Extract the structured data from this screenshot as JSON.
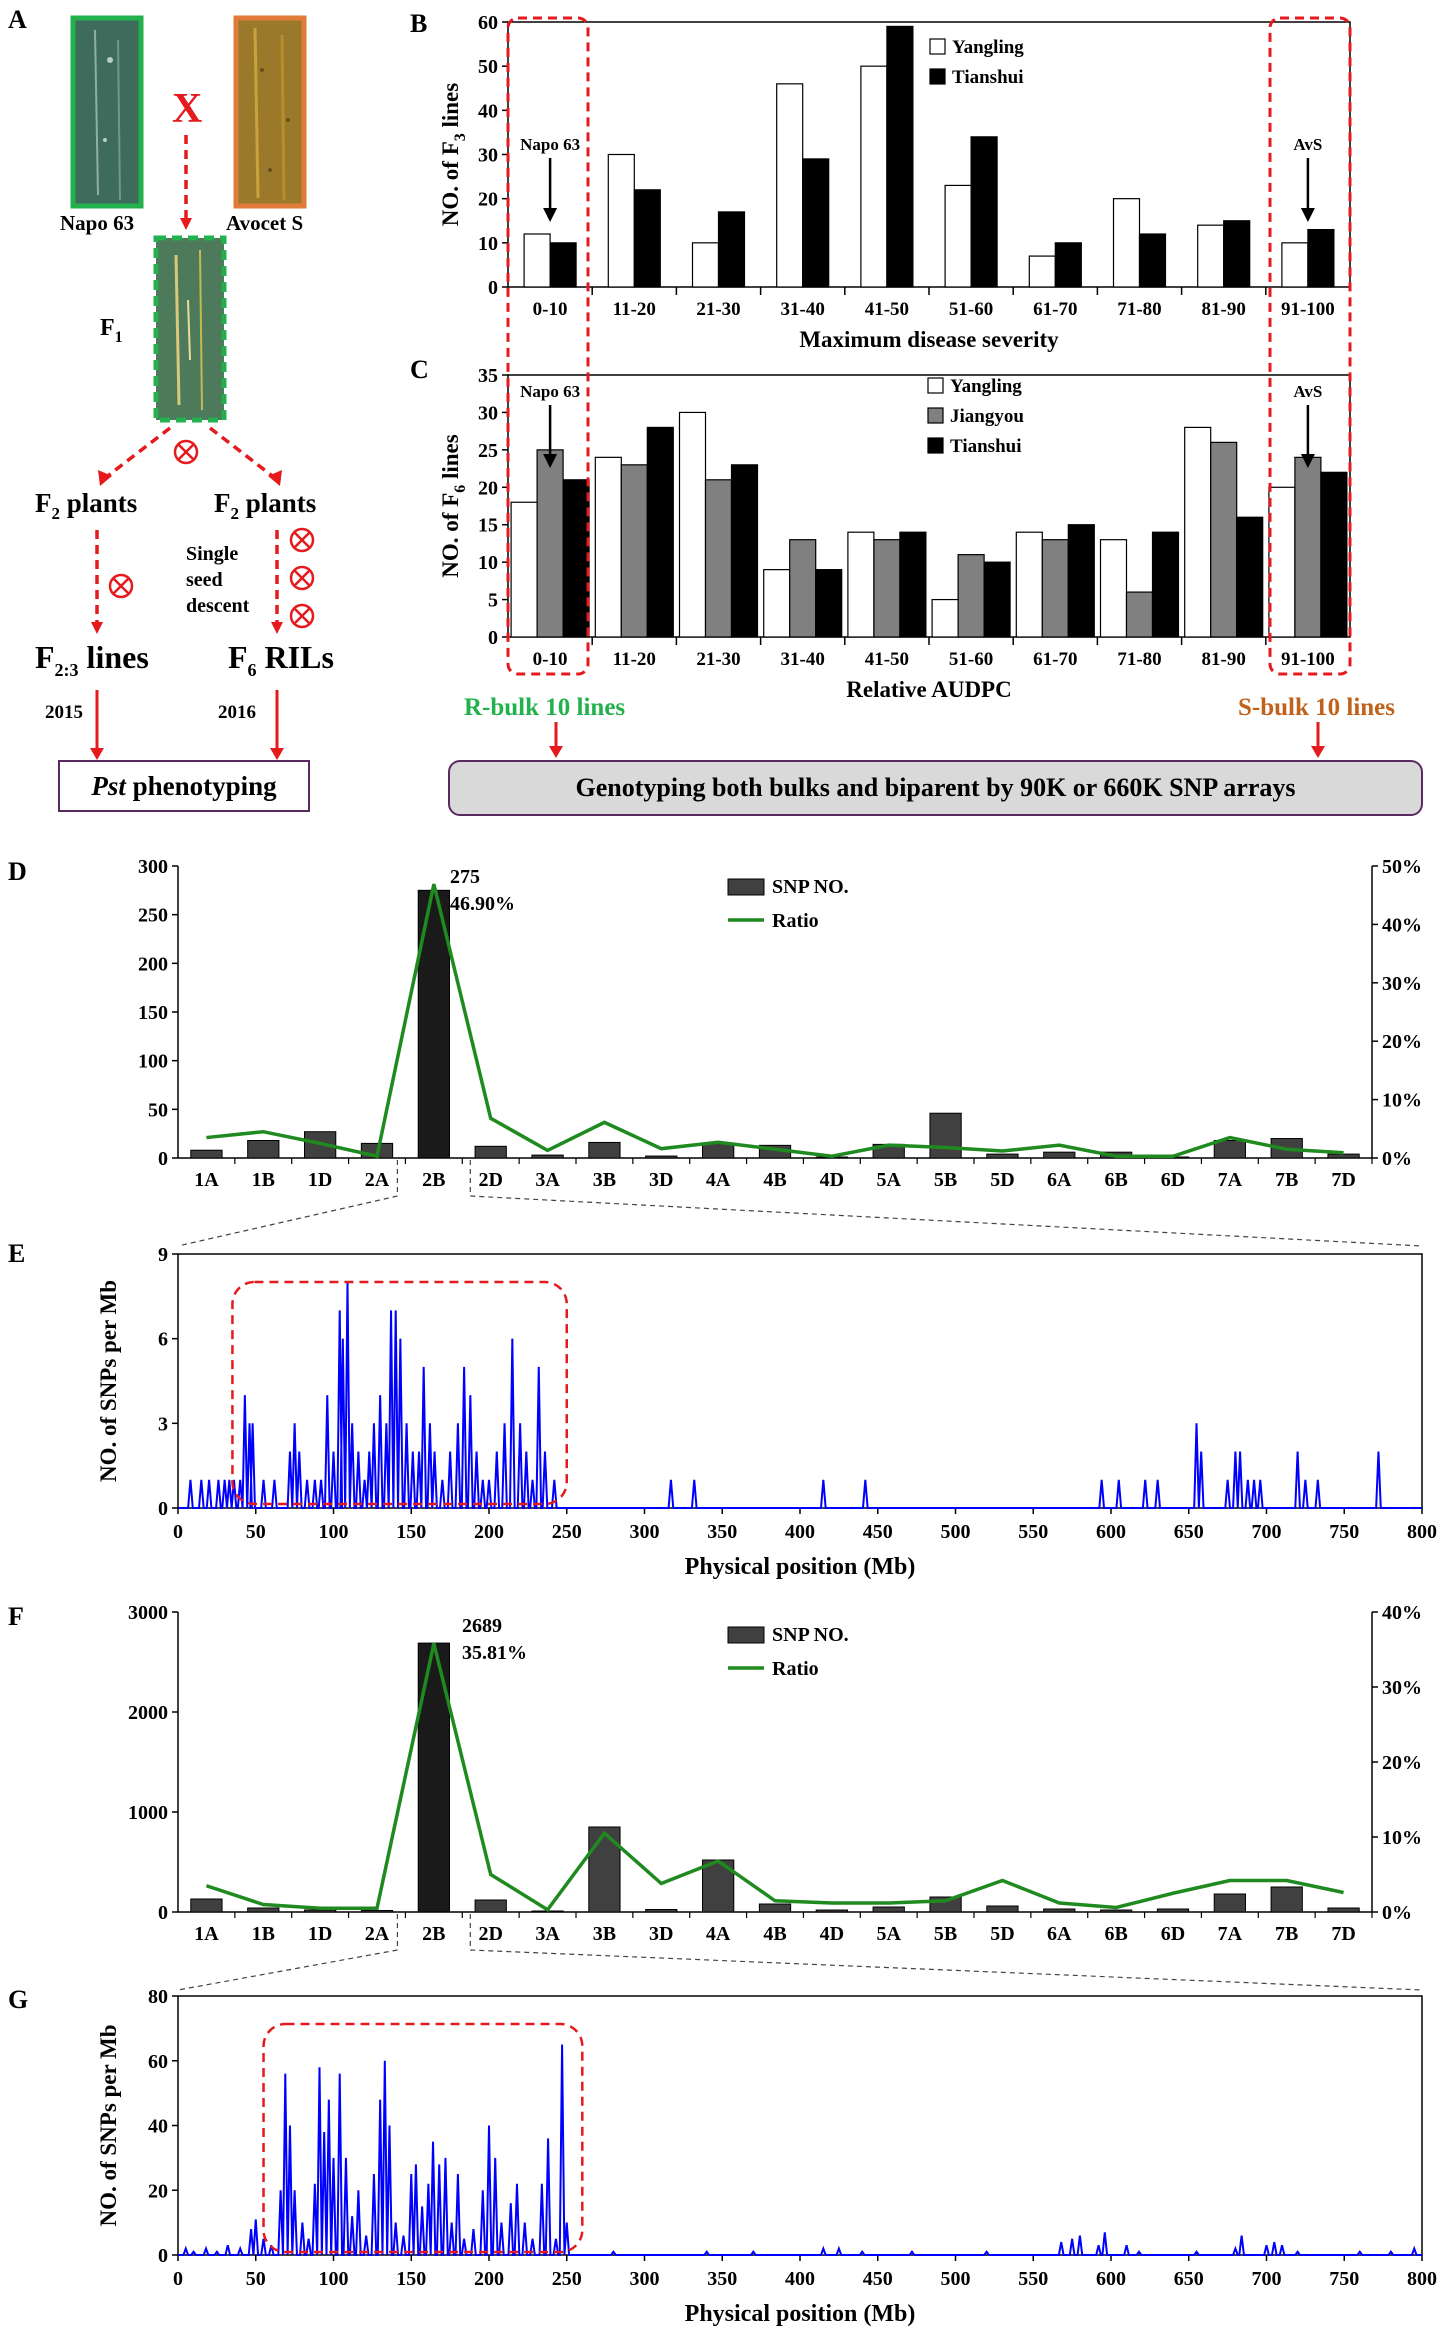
{
  "panel_a": {
    "letter": "A",
    "parent1": "Napo 63",
    "parent2": "Avocet S",
    "cross_mark": "X",
    "f1": "F",
    "f1_sub": "1",
    "f2_left": "F",
    "f2_sub": "2",
    "f2_left_suffix": " plants",
    "f2_right": "F",
    "f2_right_suffix": " plants",
    "ssd_lines": [
      "Single",
      "seed",
      "descent"
    ],
    "f23": "F",
    "f23_sub": "2:3",
    "f23_suffix": " lines",
    "f6": "F",
    "f6_sub": "6",
    "f6_suffix": " RILs",
    "year_left": "2015",
    "year_right": "2016",
    "pst_italic": "Pst",
    "pst_rest": " phenotyping",
    "selfing_symbol": "⊗"
  },
  "bulks": {
    "r_bulk": "R-bulk 10 lines",
    "s_bulk": "S-bulk 10 lines",
    "genotyping": "Genotyping both bulks and biparent by 90K or 660K SNP arrays",
    "r_color": "#22b14c",
    "s_color": "#c0621b"
  },
  "chart_data": [
    {
      "panel": "B",
      "type": "bar",
      "ylabel": "NO. of F",
      "ylabel_sub": "3",
      "ylabel_suffix": " lines",
      "xlabel": "Maximum disease severity",
      "categories": [
        "0-10",
        "11-20",
        "21-30",
        "31-40",
        "41-50",
        "51-60",
        "61-70",
        "71-80",
        "81-90",
        "91-100"
      ],
      "ylim": [
        0,
        60
      ],
      "yticks": [
        0,
        10,
        20,
        30,
        40,
        50,
        60
      ],
      "series": [
        {
          "name": "Yangling",
          "color": "#ffffff",
          "values": [
            12,
            30,
            10,
            46,
            50,
            23,
            7,
            20,
            14,
            10
          ]
        },
        {
          "name": "Tianshui",
          "color": "#000000",
          "values": [
            10,
            22,
            17,
            29,
            59,
            34,
            10,
            12,
            15,
            13
          ]
        }
      ],
      "annotations": [
        "Napo 63",
        "AvS"
      ]
    },
    {
      "panel": "C",
      "type": "bar",
      "ylabel": "NO. of F",
      "ylabel_sub": "6",
      "ylabel_suffix": " lines",
      "xlabel": "Relative AUDPC",
      "categories": [
        "0-10",
        "11-20",
        "21-30",
        "31-40",
        "41-50",
        "51-60",
        "61-70",
        "71-80",
        "81-90",
        "91-100"
      ],
      "ylim": [
        0,
        35
      ],
      "yticks": [
        0,
        5,
        10,
        15,
        20,
        25,
        30,
        35
      ],
      "series": [
        {
          "name": "Yangling",
          "color": "#ffffff",
          "values": [
            18,
            24,
            30,
            9,
            14,
            5,
            14,
            13,
            28,
            20
          ]
        },
        {
          "name": "Jiangyou",
          "color": "#808080",
          "values": [
            25,
            23,
            21,
            13,
            13,
            11,
            13,
            6,
            26,
            24
          ]
        },
        {
          "name": "Tianshui",
          "color": "#000000",
          "values": [
            21,
            28,
            23,
            9,
            14,
            10,
            15,
            14,
            16,
            22
          ]
        }
      ],
      "annotations": [
        "Napo 63",
        "AvS"
      ]
    },
    {
      "panel": "D",
      "type": "bar",
      "categories": [
        "1A",
        "1B",
        "1D",
        "2A",
        "2B",
        "2D",
        "3A",
        "3B",
        "3D",
        "4A",
        "4B",
        "4D",
        "5A",
        "5B",
        "5D",
        "6A",
        "6B",
        "6D",
        "7A",
        "7B",
        "7D"
      ],
      "ylim": [
        0,
        300
      ],
      "yticks": [
        0,
        50,
        100,
        150,
        200,
        250,
        300
      ],
      "y2lim": [
        0,
        50
      ],
      "y2ticks": [
        "0%",
        "10%",
        "20%",
        "30%",
        "40%",
        "50%"
      ],
      "series": [
        {
          "name": "SNP NO.",
          "color": "#404040",
          "values": [
            8,
            18,
            27,
            15,
            275,
            12,
            3,
            16,
            2,
            15,
            13,
            1,
            14,
            46,
            4,
            6,
            6,
            1,
            18,
            20,
            4
          ]
        },
        {
          "name": "Ratio",
          "color": "#1f8a1f",
          "values": [
            3.5,
            4.5,
            2.5,
            0.3,
            46.9,
            6.8,
            1.3,
            6.1,
            1.6,
            2.7,
            1.5,
            0.3,
            2.2,
            1.8,
            1.2,
            2.2,
            0.3,
            0.3,
            3.5,
            1.5,
            0.9
          ]
        }
      ],
      "peak_label": [
        "275",
        "46.90%"
      ]
    },
    {
      "panel": "E",
      "type": "line",
      "ylabel": "NO. of SNPs per Mb",
      "xlabel": "Physical position (Mb)",
      "xlim": [
        0,
        800
      ],
      "ylim": [
        0,
        9
      ],
      "xticks": [
        0,
        50,
        100,
        150,
        200,
        250,
        300,
        350,
        400,
        450,
        500,
        550,
        600,
        650,
        700,
        750,
        800
      ],
      "yticks": [
        0,
        3,
        6,
        9
      ],
      "color": "#0000ff",
      "highlight_range": [
        35,
        250
      ],
      "peaks": [
        [
          8,
          1
        ],
        [
          15,
          1
        ],
        [
          20,
          1
        ],
        [
          26,
          1
        ],
        [
          30,
          1
        ],
        [
          33,
          1
        ],
        [
          36,
          1
        ],
        [
          40,
          1
        ],
        [
          43,
          4
        ],
        [
          46,
          3
        ],
        [
          48,
          3
        ],
        [
          55,
          1
        ],
        [
          62,
          1
        ],
        [
          72,
          2
        ],
        [
          75,
          3
        ],
        [
          78,
          2
        ],
        [
          83,
          1
        ],
        [
          88,
          1
        ],
        [
          92,
          1
        ],
        [
          96,
          4
        ],
        [
          100,
          2
        ],
        [
          104,
          7
        ],
        [
          106,
          6
        ],
        [
          109,
          8
        ],
        [
          112,
          3
        ],
        [
          116,
          2
        ],
        [
          120,
          1
        ],
        [
          123,
          2
        ],
        [
          126,
          3
        ],
        [
          130,
          4
        ],
        [
          134,
          3
        ],
        [
          137,
          7
        ],
        [
          140,
          7
        ],
        [
          143,
          6
        ],
        [
          147,
          3
        ],
        [
          151,
          2
        ],
        [
          155,
          2
        ],
        [
          158,
          5
        ],
        [
          162,
          3
        ],
        [
          165,
          2
        ],
        [
          170,
          1
        ],
        [
          175,
          2
        ],
        [
          180,
          3
        ],
        [
          184,
          5
        ],
        [
          188,
          4
        ],
        [
          192,
          2
        ],
        [
          196,
          1
        ],
        [
          200,
          1
        ],
        [
          205,
          2
        ],
        [
          210,
          3
        ],
        [
          215,
          6
        ],
        [
          220,
          3
        ],
        [
          224,
          2
        ],
        [
          228,
          1
        ],
        [
          232,
          5
        ],
        [
          236,
          2
        ],
        [
          242,
          1
        ],
        [
          317,
          1
        ],
        [
          332,
          1
        ],
        [
          415,
          1
        ],
        [
          442,
          1
        ],
        [
          594,
          1
        ],
        [
          605,
          1
        ],
        [
          622,
          1
        ],
        [
          630,
          1
        ],
        [
          655,
          3
        ],
        [
          658,
          2
        ],
        [
          675,
          1
        ],
        [
          680,
          2
        ],
        [
          683,
          2
        ],
        [
          688,
          1
        ],
        [
          692,
          1
        ],
        [
          696,
          1
        ],
        [
          720,
          2
        ],
        [
          725,
          1
        ],
        [
          733,
          1
        ],
        [
          772,
          2
        ]
      ]
    },
    {
      "panel": "F",
      "type": "bar",
      "categories": [
        "1A",
        "1B",
        "1D",
        "2A",
        "2B",
        "2D",
        "3A",
        "3B",
        "3D",
        "4A",
        "4B",
        "4D",
        "5A",
        "5B",
        "5D",
        "6A",
        "6B",
        "6D",
        "7A",
        "7B",
        "7D"
      ],
      "ylim": [
        0,
        3000
      ],
      "yticks": [
        0,
        1000,
        2000,
        3000
      ],
      "y2lim": [
        0,
        40
      ],
      "y2ticks": [
        "0%",
        "10%",
        "20%",
        "30%",
        "40%"
      ],
      "series": [
        {
          "name": "SNP NO.",
          "color": "#404040",
          "values": [
            130,
            40,
            20,
            15,
            2689,
            120,
            10,
            850,
            25,
            520,
            80,
            20,
            50,
            150,
            60,
            30,
            20,
            30,
            180,
            250,
            40
          ]
        },
        {
          "name": "Ratio",
          "color": "#1f8a1f",
          "values": [
            3.5,
            1.0,
            0.5,
            0.5,
            35.81,
            5.0,
            0.3,
            10.5,
            3.8,
            6.8,
            1.5,
            1.2,
            1.2,
            1.5,
            4.2,
            1.2,
            0.6,
            2.5,
            4.2,
            4.2,
            2.6
          ]
        }
      ],
      "peak_label": [
        "2689",
        "35.81%"
      ]
    },
    {
      "panel": "G",
      "type": "line",
      "ylabel": "NO. of SNPs per Mb",
      "xlabel": "Physical position (Mb)",
      "xlim": [
        0,
        800
      ],
      "ylim": [
        0,
        80
      ],
      "xticks": [
        0,
        50,
        100,
        150,
        200,
        250,
        300,
        350,
        400,
        450,
        500,
        550,
        600,
        650,
        700,
        750,
        800
      ],
      "yticks": [
        0,
        20,
        40,
        60,
        80
      ],
      "color": "#0000ff",
      "highlight_range": [
        55,
        260
      ],
      "peaks": [
        [
          5,
          2
        ],
        [
          10,
          1
        ],
        [
          18,
          2
        ],
        [
          25,
          1
        ],
        [
          32,
          3
        ],
        [
          40,
          2
        ],
        [
          47,
          8
        ],
        [
          50,
          11
        ],
        [
          55,
          5
        ],
        [
          60,
          3
        ],
        [
          66,
          20
        ],
        [
          69,
          56
        ],
        [
          72,
          40
        ],
        [
          75,
          20
        ],
        [
          80,
          10
        ],
        [
          84,
          5
        ],
        [
          88,
          22
        ],
        [
          91,
          58
        ],
        [
          94,
          38
        ],
        [
          97,
          48
        ],
        [
          100,
          30
        ],
        [
          104,
          56
        ],
        [
          108,
          30
        ],
        [
          112,
          12
        ],
        [
          116,
          20
        ],
        [
          121,
          6
        ],
        [
          126,
          25
        ],
        [
          130,
          48
        ],
        [
          133,
          60
        ],
        [
          136,
          40
        ],
        [
          140,
          10
        ],
        [
          145,
          6
        ],
        [
          150,
          25
        ],
        [
          153,
          28
        ],
        [
          157,
          15
        ],
        [
          161,
          22
        ],
        [
          164,
          35
        ],
        [
          168,
          28
        ],
        [
          172,
          30
        ],
        [
          176,
          10
        ],
        [
          180,
          25
        ],
        [
          184,
          5
        ],
        [
          190,
          8
        ],
        [
          196,
          20
        ],
        [
          200,
          40
        ],
        [
          204,
          30
        ],
        [
          208,
          10
        ],
        [
          214,
          16
        ],
        [
          218,
          22
        ],
        [
          223,
          10
        ],
        [
          228,
          5
        ],
        [
          234,
          22
        ],
        [
          238,
          36
        ],
        [
          243,
          5
        ],
        [
          247,
          65
        ],
        [
          250,
          10
        ],
        [
          280,
          1
        ],
        [
          340,
          1
        ],
        [
          370,
          1
        ],
        [
          415,
          2
        ],
        [
          425,
          2
        ],
        [
          440,
          1
        ],
        [
          472,
          1
        ],
        [
          520,
          1
        ],
        [
          568,
          4
        ],
        [
          575,
          5
        ],
        [
          580,
          6
        ],
        [
          592,
          3
        ],
        [
          596,
          7
        ],
        [
          610,
          3
        ],
        [
          618,
          1
        ],
        [
          655,
          1
        ],
        [
          680,
          2
        ],
        [
          684,
          6
        ],
        [
          700,
          3
        ],
        [
          705,
          4
        ],
        [
          710,
          3
        ],
        [
          720,
          1
        ],
        [
          760,
          1
        ],
        [
          780,
          1
        ],
        [
          795,
          2
        ]
      ]
    }
  ],
  "panel_letters": {
    "b": "B",
    "c": "C",
    "d": "D",
    "e": "E",
    "f": "F",
    "g": "G"
  }
}
